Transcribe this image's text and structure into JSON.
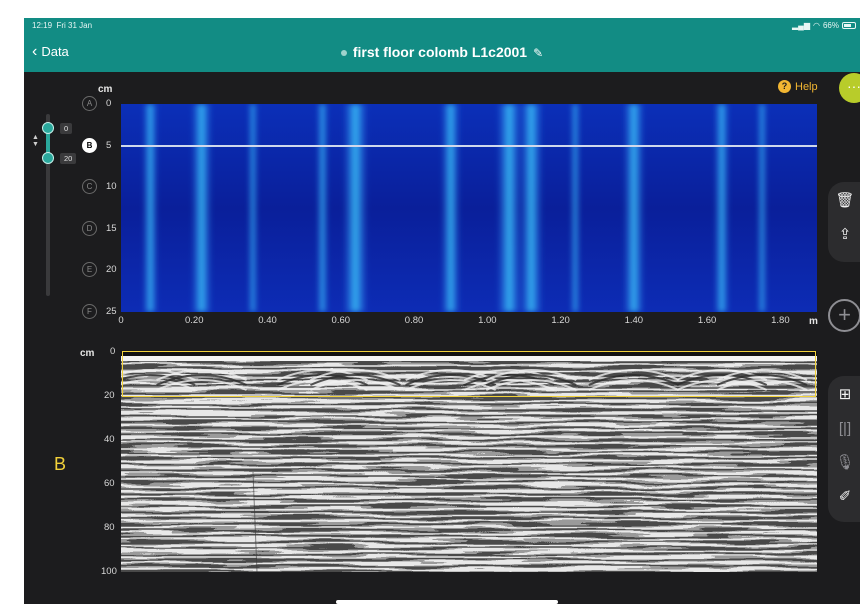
{
  "status_bar": {
    "time": "12:19",
    "date": "Fri 31 Jan",
    "battery": "66%",
    "icons": [
      "signal-icon",
      "wifi-icon",
      "battery-icon"
    ]
  },
  "nav": {
    "back_label": "Data",
    "title": "first floor colomb L1c2001",
    "back_icon": "chevron-left-icon",
    "edit_icon": "pencil-icon"
  },
  "help": {
    "label": "Help"
  },
  "more": {
    "label": "···"
  },
  "depth_slider": {
    "top_value": "0",
    "bottom_value": "20"
  },
  "tomography": {
    "unit_y": "cm",
    "unit_x": "m",
    "y_ticks": [
      "0",
      "5",
      "10",
      "15",
      "20",
      "25"
    ],
    "x_ticks": [
      "0",
      "0.20",
      "0.40",
      "0.60",
      "0.80",
      "1.00",
      "1.20",
      "1.40",
      "1.60",
      "1.80"
    ],
    "markers": [
      "A",
      "B",
      "C",
      "D",
      "E",
      "F"
    ],
    "active_marker": "B",
    "selected_depth_cm": 5
  },
  "bscan": {
    "unit_y": "cm",
    "y_ticks": [
      "0",
      "20",
      "40",
      "60",
      "80",
      "100"
    ],
    "label": "B",
    "selection_top_cm": 0,
    "selection_bottom_cm": 20
  },
  "side_tools_top": [
    "trash-icon",
    "share-icon"
  ],
  "side_tools_bottom": [
    "export-icon",
    "split-icon",
    "microphone-icon",
    "annotate-icon"
  ],
  "accent_color": "#128c84",
  "highlight_color": "#f2d13a"
}
